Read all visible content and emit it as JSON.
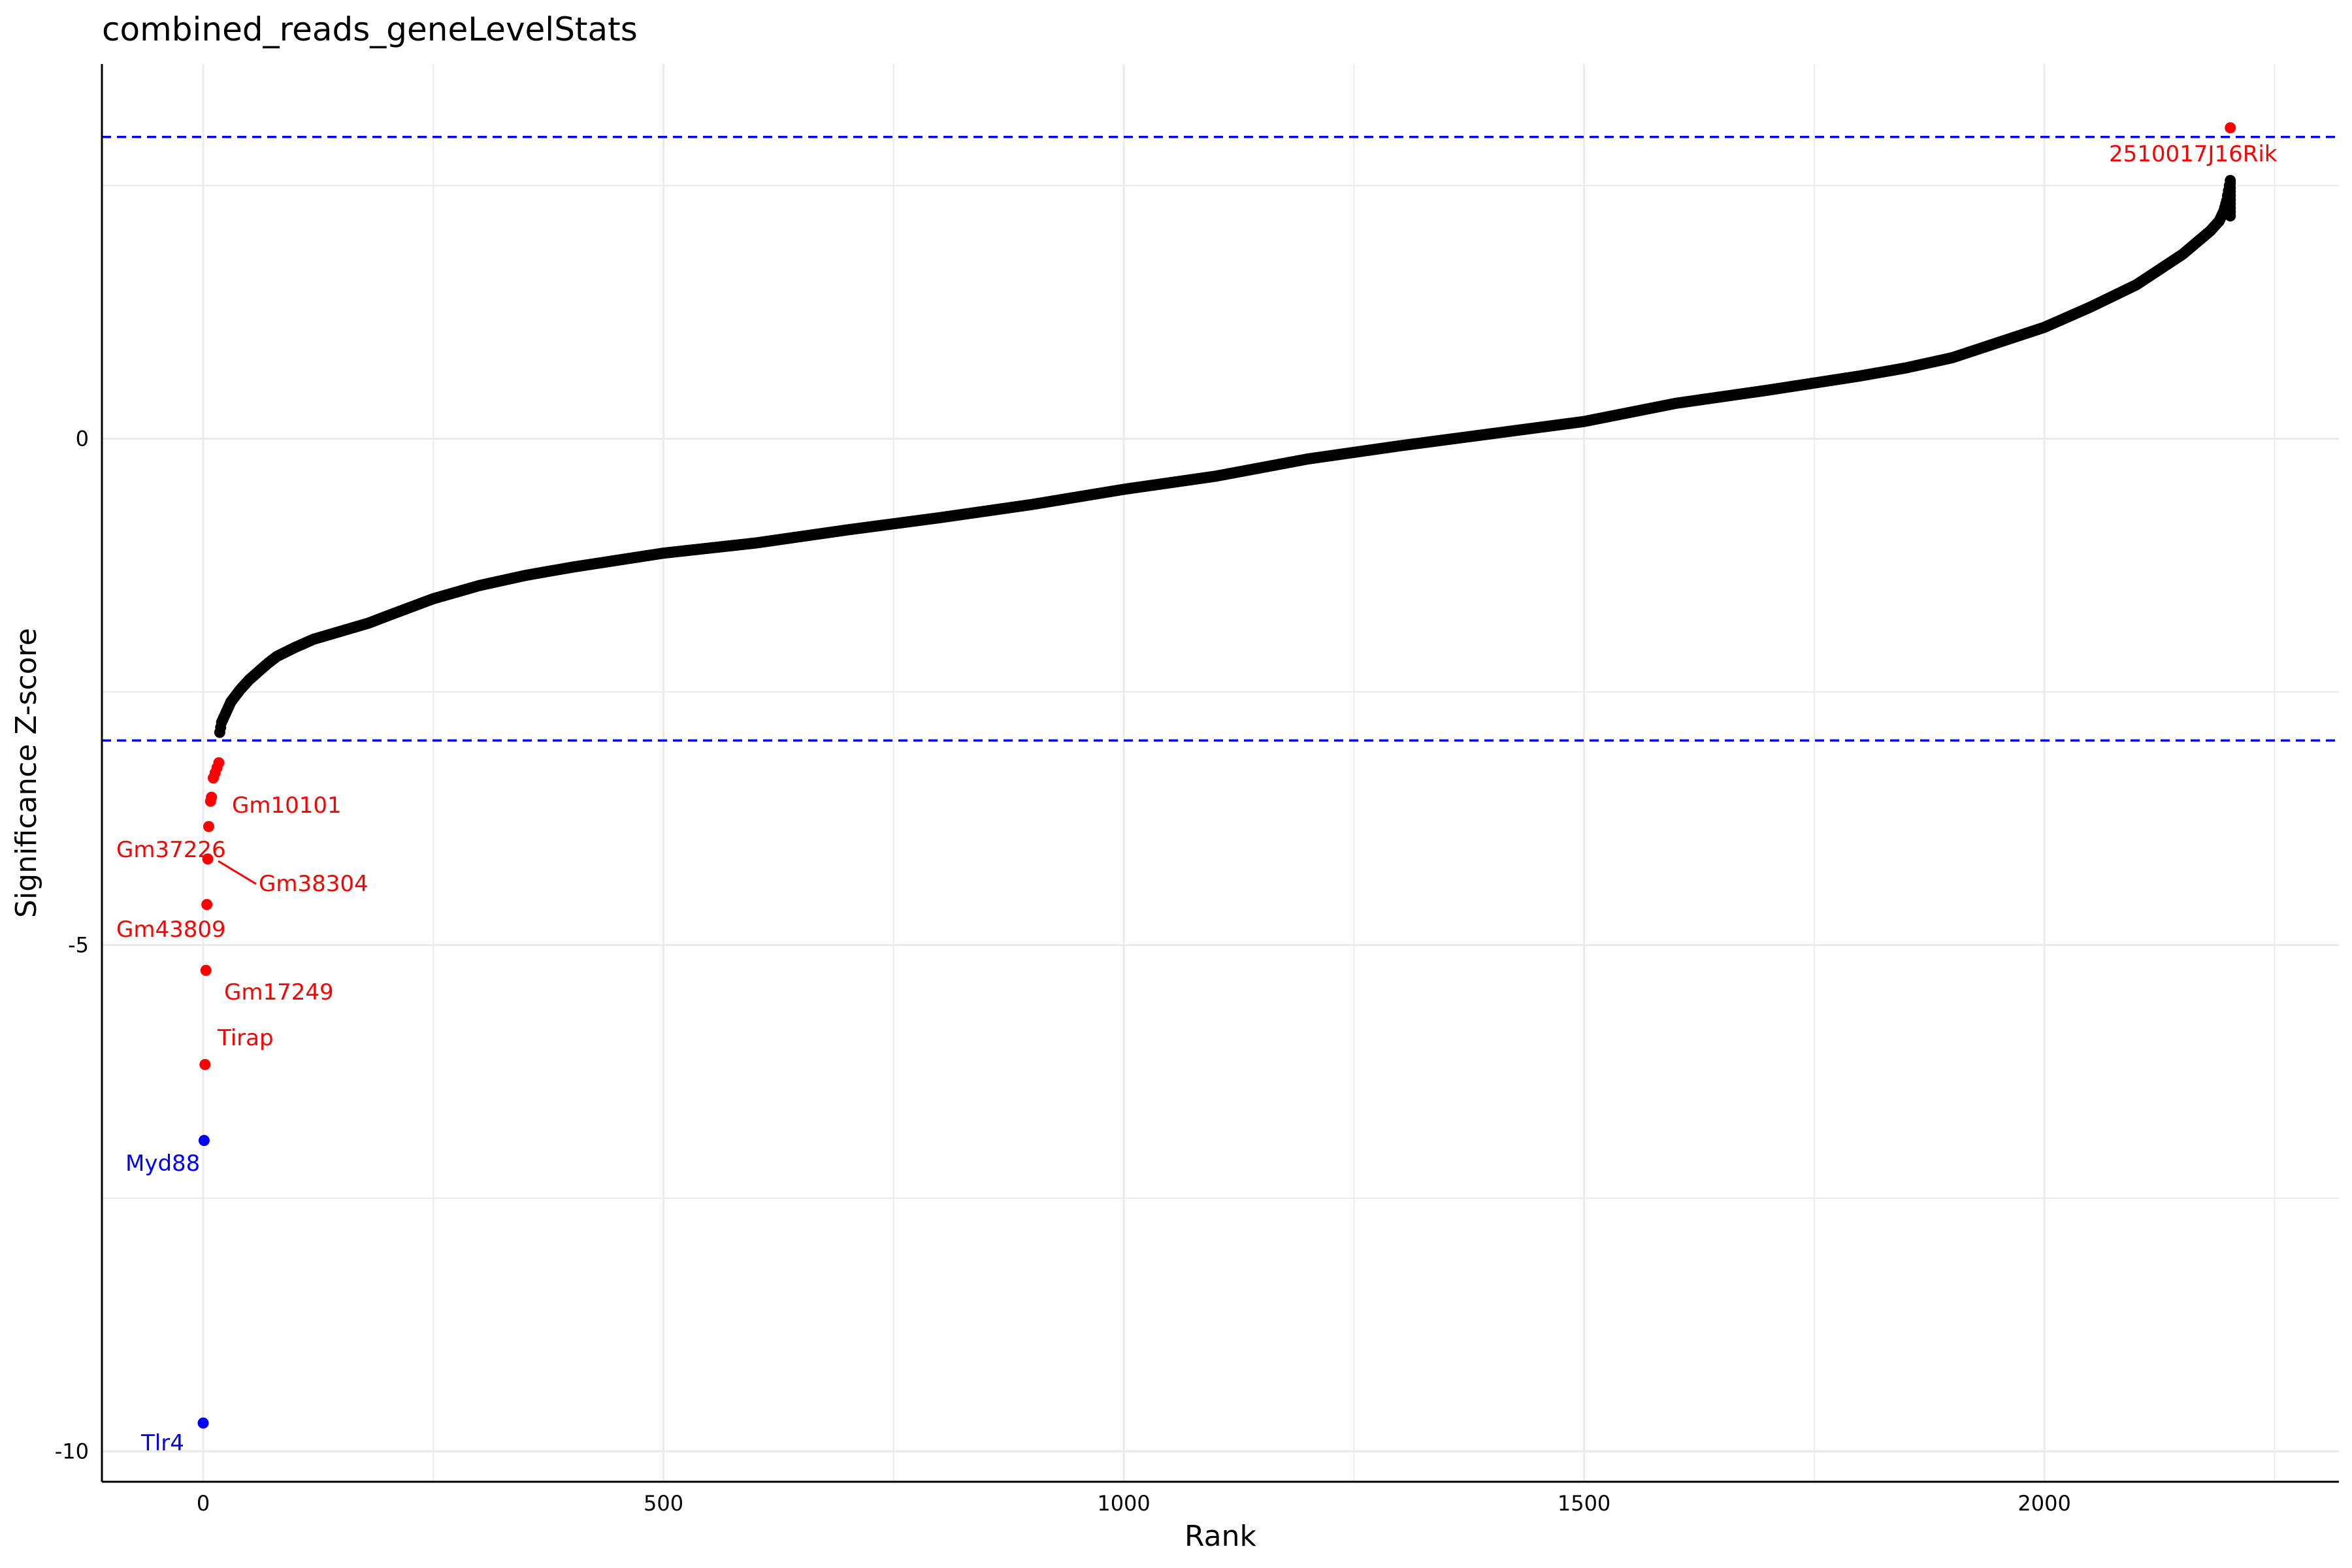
{
  "chart_data": {
    "type": "scatter",
    "title": "combined_reads_geneLevelStats",
    "xlabel": "Rank",
    "ylabel": "Significance Z-score",
    "xlim": [
      -110,
      2320
    ],
    "ylim": [
      -10.3,
      3.7
    ],
    "x_ticks": [
      0,
      500,
      1000,
      1500,
      2000
    ],
    "x_tick_labels": [
      "0",
      "500",
      "1000",
      "1500",
      "2000"
    ],
    "y_ticks": [
      0,
      -5,
      -10
    ],
    "y_tick_labels": [
      "0",
      "-5",
      "-10"
    ],
    "grid": true,
    "thresholds": [
      2.98,
      -2.98
    ],
    "colors": {
      "main": "#000000",
      "up": "#ff0000",
      "down": "#0000ff",
      "threshold": "#0000ff",
      "grid": "#ebebeb"
    },
    "curve": {
      "x": [
        18,
        20,
        25,
        30,
        40,
        50,
        60,
        70,
        80,
        100,
        120,
        150,
        180,
        200,
        250,
        300,
        350,
        400,
        500,
        600,
        700,
        800,
        900,
        1000,
        1100,
        1200,
        1300,
        1400,
        1500,
        1600,
        1700,
        1800,
        1850,
        1900,
        1950,
        2000,
        2050,
        2100,
        2150,
        2180,
        2190,
        2195,
        2198,
        2200,
        2202
      ],
      "y": [
        -2.9,
        -2.8,
        -2.7,
        -2.6,
        -2.48,
        -2.38,
        -2.3,
        -2.22,
        -2.15,
        -2.06,
        -1.98,
        -1.9,
        -1.82,
        -1.75,
        -1.58,
        -1.45,
        -1.35,
        -1.27,
        -1.13,
        -1.03,
        -0.9,
        -0.78,
        -0.65,
        -0.5,
        -0.37,
        -0.2,
        -0.07,
        0.05,
        0.17,
        0.35,
        0.48,
        0.62,
        0.7,
        0.8,
        0.95,
        1.1,
        1.3,
        1.52,
        1.82,
        2.05,
        2.15,
        2.25,
        2.35,
        2.45,
        2.55
      ]
    },
    "highlighted": [
      {
        "x": 2202,
        "y": 3.07,
        "color": "up"
      },
      {
        "x": 17,
        "y": -3.2,
        "color": "up"
      },
      {
        "x": 15,
        "y": -3.25,
        "color": "up"
      },
      {
        "x": 13,
        "y": -3.3,
        "color": "up"
      },
      {
        "x": 11,
        "y": -3.35,
        "color": "up"
      },
      {
        "x": 9,
        "y": -3.54,
        "color": "up"
      },
      {
        "x": 8,
        "y": -3.58,
        "color": "up"
      },
      {
        "x": 6,
        "y": -3.83,
        "color": "up"
      },
      {
        "x": 5,
        "y": -4.15,
        "color": "up"
      },
      {
        "x": 4,
        "y": -4.6,
        "color": "up"
      },
      {
        "x": 3,
        "y": -5.25,
        "color": "up"
      },
      {
        "x": 2,
        "y": -6.18,
        "color": "up"
      },
      {
        "x": 1,
        "y": -6.93,
        "color": "down"
      },
      {
        "x": 0,
        "y": -9.72,
        "color": "down"
      }
    ],
    "labels": [
      {
        "text": "2510017J16Rik",
        "color": "up"
      },
      {
        "text": "Gm10101",
        "color": "up"
      },
      {
        "text": "Gm37226",
        "color": "up"
      },
      {
        "text": "Gm38304",
        "color": "up"
      },
      {
        "text": "Gm43809",
        "color": "up"
      },
      {
        "text": "Gm17249",
        "color": "up"
      },
      {
        "text": "Tirap",
        "color": "up"
      },
      {
        "text": "Myd88",
        "color": "down"
      },
      {
        "text": "Tlr4",
        "color": "down"
      }
    ]
  }
}
